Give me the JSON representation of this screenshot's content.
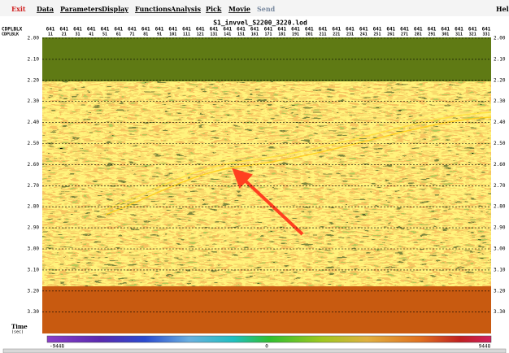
{
  "menu": [
    "Exit",
    "Data",
    "Parameters",
    "Display",
    "Functions",
    "Analysis",
    "Pick",
    "Movie",
    "Send",
    "Help"
  ],
  "title": "S1_invvel_S2200_3220.lod",
  "header": {
    "row_labels": [
      "CDPLBLX",
      "CDPLBLK"
    ],
    "row1": [
      "641",
      "641",
      "641",
      "641",
      "641",
      "641",
      "641",
      "641",
      "641",
      "641",
      "641",
      "641",
      "641",
      "641",
      "641",
      "641",
      "641",
      "641",
      "641",
      "641",
      "641",
      "641",
      "641",
      "641",
      "641",
      "641",
      "641",
      "641",
      "641",
      "641",
      "641",
      "641",
      "641"
    ],
    "row2": [
      "11",
      "21",
      "31",
      "41",
      "51",
      "61",
      "71",
      "81",
      "91",
      "101",
      "111",
      "121",
      "131",
      "141",
      "151",
      "161",
      "171",
      "181",
      "191",
      "201",
      "211",
      "221",
      "231",
      "241",
      "251",
      "261",
      "271",
      "281",
      "291",
      "301",
      "311",
      "321",
      "331"
    ]
  },
  "time_axis": {
    "label": "Time",
    "unit": "(sec)",
    "ticks": [
      "2.00",
      "2.10",
      "2.20",
      "2.30",
      "2.40",
      "2.50",
      "2.60",
      "2.70",
      "2.80",
      "2.90",
      "3.00",
      "3.10",
      "3.20",
      "3.30"
    ]
  },
  "colorbar": {
    "min": "-9448",
    "mid": "0",
    "max": "9448"
  }
}
